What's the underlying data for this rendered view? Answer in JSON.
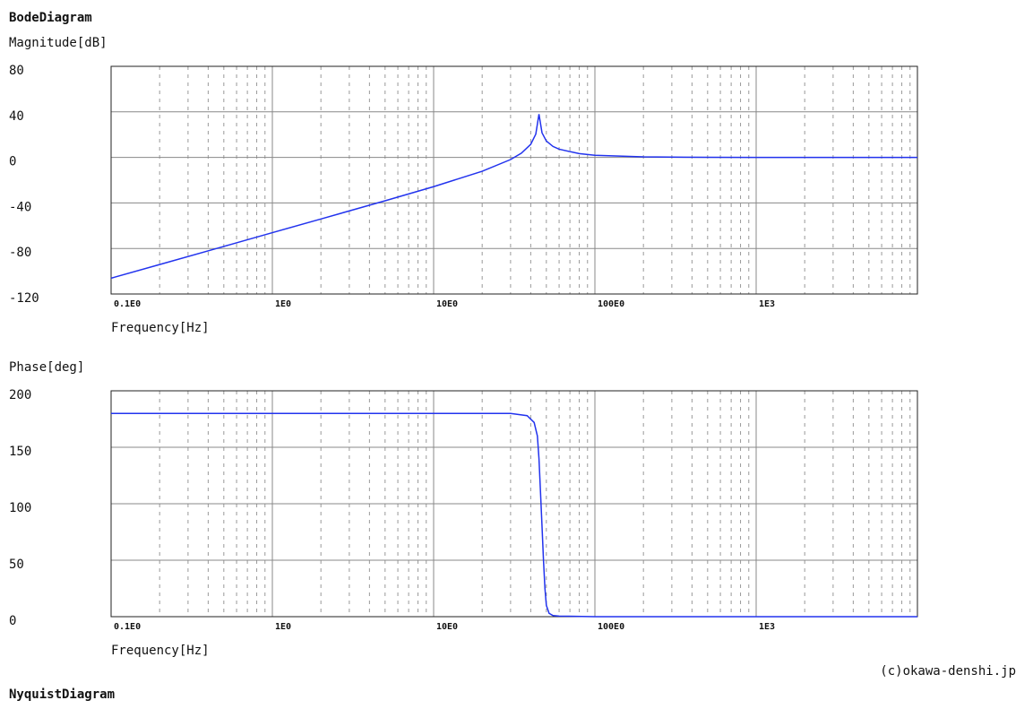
{
  "header": {
    "title": "BodeDiagram"
  },
  "chart_data": [
    {
      "type": "line",
      "y_label": "Magnitude[dB]",
      "x_label": "Frequency[Hz]",
      "x": [
        0.1,
        0.2,
        0.5,
        1,
        2,
        5,
        10,
        20,
        30,
        35,
        40,
        43,
        45,
        47,
        50,
        55,
        60,
        80,
        100,
        200,
        500,
        1000,
        10000
      ],
      "values": [
        -106.1,
        -94.1,
        -78.2,
        -66.1,
        -54.1,
        -38.1,
        -25.7,
        -12.2,
        -1.9,
        3.7,
        11.5,
        20.4,
        38,
        21.6,
        14.4,
        9.6,
        7.2,
        3.3,
        1.9,
        0.45,
        0.07,
        0.02,
        0
      ],
      "color": "#2233ee",
      "xlog": true,
      "xlim": [
        0.1,
        10000
      ],
      "ylim": [
        -120,
        80
      ],
      "xticks": [
        {
          "value": 0.1,
          "label": "0.1E0"
        },
        {
          "value": 1,
          "label": "1E0"
        },
        {
          "value": 10,
          "label": "10E0"
        },
        {
          "value": 100,
          "label": "100E0"
        },
        {
          "value": 1000,
          "label": "1E3"
        }
      ],
      "yticks": [
        -120,
        -80,
        -40,
        0,
        40,
        80
      ],
      "grid": true,
      "minor_grid": true
    },
    {
      "type": "line",
      "y_label": "Phase[deg]",
      "x_label": "Frequency[Hz]",
      "x": [
        0.1,
        1,
        10,
        30,
        38,
        42,
        44,
        45,
        46,
        47,
        48,
        49,
        50,
        52,
        55,
        60,
        100,
        1000,
        10000
      ],
      "values": [
        180,
        180,
        180,
        180,
        178,
        172,
        160,
        140,
        110,
        80,
        50,
        25,
        10,
        3,
        1,
        0.5,
        0,
        0,
        0
      ],
      "color": "#2233ee",
      "xlog": true,
      "xlim": [
        0.1,
        10000
      ],
      "ylim": [
        0,
        200
      ],
      "xticks": [
        {
          "value": 0.1,
          "label": "0.1E0"
        },
        {
          "value": 1,
          "label": "1E0"
        },
        {
          "value": 10,
          "label": "10E0"
        },
        {
          "value": 100,
          "label": "100E0"
        },
        {
          "value": 1000,
          "label": "1E3"
        }
      ],
      "yticks": [
        0,
        50,
        100,
        150,
        200
      ],
      "grid": true,
      "minor_grid": true
    }
  ],
  "footer": {
    "copyright": "(c)okawa-denshi.jp",
    "next_title": "NyquistDiagram"
  }
}
